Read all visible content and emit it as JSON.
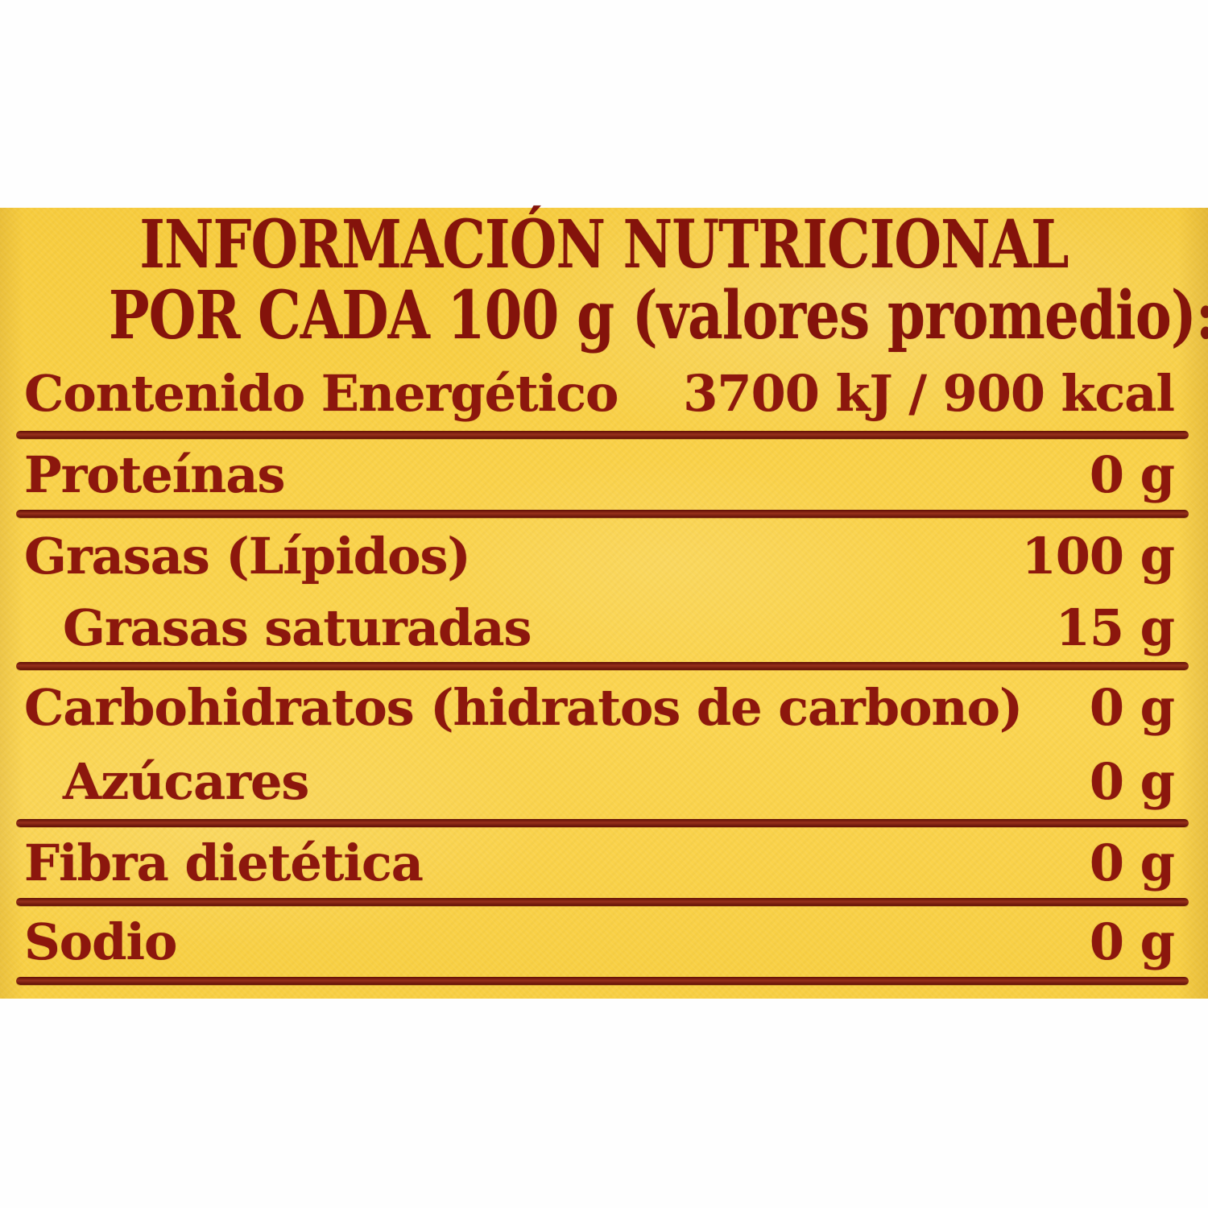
{
  "label": {
    "title_line1": "INFORMACIÓN NUTRICIONAL",
    "title_line2": "POR CADA 100 g (valores promedio):",
    "rows": [
      {
        "label": "Contenido Energético",
        "value": "3700 kJ / 900 kcal"
      },
      {
        "label": "Proteínas",
        "value": "0 g"
      },
      {
        "label": "Grasas (Lípidos)",
        "value": "100 g"
      },
      {
        "label": "Grasas saturadas",
        "value": "15 g"
      },
      {
        "label": "Carbohidratos (hidratos de carbono)",
        "value": "0 g"
      },
      {
        "label": "Azúcares",
        "value": "0 g"
      },
      {
        "label": "Fibra dietética",
        "value": "0 g"
      },
      {
        "label": "Sodio",
        "value": "0 g"
      }
    ],
    "colors": {
      "label_background": "#F9D247",
      "text": "#8C170D",
      "rule": "#7E150A",
      "page_background": "#FFFFFF"
    }
  }
}
